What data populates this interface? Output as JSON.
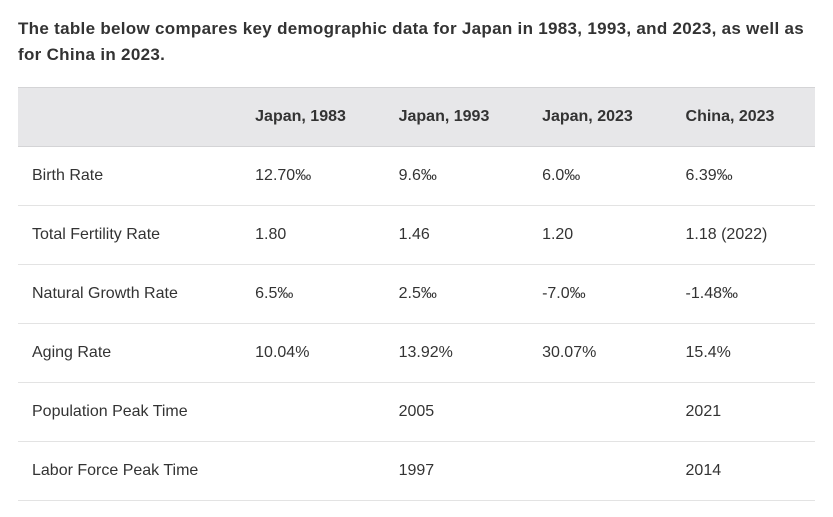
{
  "intro": "The table below compares key demographic data for Japan in 1983, 1993, and 2023, as well as for China in 2023.",
  "table": {
    "type": "table",
    "columns": [
      "",
      "Japan, 1983",
      "Japan, 1993",
      "Japan, 2023",
      "China, 2023"
    ],
    "column_widths_pct": [
      28,
      18,
      18,
      18,
      18
    ],
    "header_background": "#e7e7e9",
    "header_border_color": "#d4d4d6",
    "row_border_color": "#e3e3e3",
    "header_fontweight": 700,
    "header_fontsize": 16,
    "cell_fontsize": 16,
    "text_color": "#333333",
    "background_color": "#ffffff",
    "rows": [
      {
        "label": "Birth Rate",
        "cells": [
          "12.70‰",
          "9.6‰",
          "6.0‰",
          "6.39‰"
        ]
      },
      {
        "label": "Total Fertility Rate",
        "cells": [
          "1.80",
          "1.46",
          "1.20",
          "1.18 (2022)"
        ]
      },
      {
        "label": "Natural Growth Rate",
        "cells": [
          "6.5‰",
          "2.5‰",
          "-7.0‰",
          "-1.48‰"
        ]
      },
      {
        "label": "Aging Rate",
        "cells": [
          "10.04%",
          "13.92%",
          "30.07%",
          "15.4%"
        ]
      },
      {
        "label": "Population Peak Time",
        "cells": [
          "",
          "2005",
          "",
          "2021"
        ]
      },
      {
        "label": "Labor Force Peak Time",
        "cells": [
          "",
          "1997",
          "",
          "2014"
        ]
      }
    ]
  },
  "typography": {
    "intro_fontsize": 17,
    "intro_fontweight": 700,
    "font_family": "Arial, Helvetica, sans-serif"
  }
}
